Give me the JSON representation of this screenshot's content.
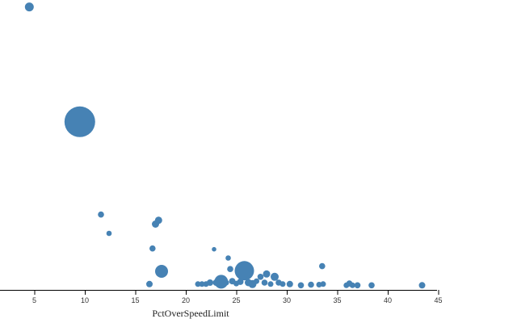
{
  "chart_data": {
    "type": "scatter",
    "xlabel": "PctOverSpeedLimit",
    "xlim": [
      0,
      45
    ],
    "xticks": [
      5,
      10,
      15,
      20,
      25,
      30,
      35,
      40,
      45
    ],
    "ylim": [
      0,
      1
    ],
    "y_axis_visible": false,
    "grid": false,
    "legend": "none",
    "color": "#4682b4",
    "points": [
      {
        "x": 4.5,
        "y": 0.976,
        "size": 5.5
      },
      {
        "x": 9.5,
        "y": 0.58,
        "size": 19
      },
      {
        "x": 11.6,
        "y": 0.26,
        "size": 3.8
      },
      {
        "x": 12.4,
        "y": 0.195,
        "size": 3.3
      },
      {
        "x": 16.7,
        "y": 0.143,
        "size": 3.8
      },
      {
        "x": 17.0,
        "y": 0.227,
        "size": 4.5
      },
      {
        "x": 17.3,
        "y": 0.24,
        "size": 4.5
      },
      {
        "x": 17.6,
        "y": 0.064,
        "size": 8
      },
      {
        "x": 16.4,
        "y": 0.02,
        "size": 4
      },
      {
        "x": 21.2,
        "y": 0.02,
        "size": 3.5
      },
      {
        "x": 21.6,
        "y": 0.02,
        "size": 3.5
      },
      {
        "x": 22.0,
        "y": 0.02,
        "size": 3.5
      },
      {
        "x": 22.4,
        "y": 0.025,
        "size": 4
      },
      {
        "x": 22.8,
        "y": 0.14,
        "size": 2.8
      },
      {
        "x": 23.0,
        "y": 0.025,
        "size": 4
      },
      {
        "x": 23.5,
        "y": 0.028,
        "size": 8.5
      },
      {
        "x": 24.0,
        "y": 0.025,
        "size": 3.5
      },
      {
        "x": 24.2,
        "y": 0.11,
        "size": 3.3
      },
      {
        "x": 24.4,
        "y": 0.072,
        "size": 3.8
      },
      {
        "x": 24.6,
        "y": 0.03,
        "size": 4
      },
      {
        "x": 25.0,
        "y": 0.022,
        "size": 3.5
      },
      {
        "x": 25.4,
        "y": 0.028,
        "size": 4
      },
      {
        "x": 25.8,
        "y": 0.066,
        "size": 12
      },
      {
        "x": 26.2,
        "y": 0.025,
        "size": 4.5
      },
      {
        "x": 26.6,
        "y": 0.02,
        "size": 5
      },
      {
        "x": 27.0,
        "y": 0.03,
        "size": 3.5
      },
      {
        "x": 27.4,
        "y": 0.045,
        "size": 3.8
      },
      {
        "x": 27.8,
        "y": 0.025,
        "size": 3.8
      },
      {
        "x": 28.0,
        "y": 0.055,
        "size": 4.5
      },
      {
        "x": 28.4,
        "y": 0.02,
        "size": 3.5
      },
      {
        "x": 28.8,
        "y": 0.045,
        "size": 5
      },
      {
        "x": 29.2,
        "y": 0.025,
        "size": 3.8
      },
      {
        "x": 29.6,
        "y": 0.02,
        "size": 3.5
      },
      {
        "x": 30.3,
        "y": 0.02,
        "size": 4
      },
      {
        "x": 31.4,
        "y": 0.016,
        "size": 3.8
      },
      {
        "x": 32.4,
        "y": 0.018,
        "size": 3.8
      },
      {
        "x": 33.2,
        "y": 0.018,
        "size": 3.5
      },
      {
        "x": 33.5,
        "y": 0.082,
        "size": 3.8
      },
      {
        "x": 33.6,
        "y": 0.02,
        "size": 3.5
      },
      {
        "x": 35.9,
        "y": 0.016,
        "size": 3.5
      },
      {
        "x": 36.2,
        "y": 0.022,
        "size": 3.8
      },
      {
        "x": 36.5,
        "y": 0.016,
        "size": 3.5
      },
      {
        "x": 37.0,
        "y": 0.016,
        "size": 3.8
      },
      {
        "x": 38.4,
        "y": 0.016,
        "size": 3.8
      },
      {
        "x": 43.4,
        "y": 0.016,
        "size": 4
      }
    ]
  }
}
